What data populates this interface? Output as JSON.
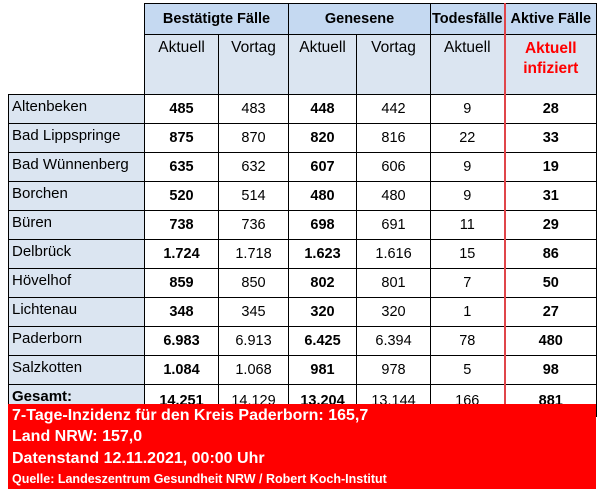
{
  "header": {
    "group_confirmed": "Bestätigte Fälle",
    "group_recovered": "Genesene",
    "group_deaths": "Todesfälle",
    "group_active": "Aktive Fälle",
    "sub_current_1": "Aktuell",
    "sub_previous_1": "Vortag",
    "sub_current_2": "Aktuell",
    "sub_previous_2": "Vortag",
    "sub_current_3": "Aktuell",
    "sub_active_line1": "Aktuell",
    "sub_active_line2": "infiziert"
  },
  "rows": [
    {
      "name": "Altenbeken",
      "conf_cur": "485",
      "conf_prev": "483",
      "rec_cur": "448",
      "rec_prev": "442",
      "deaths": "9",
      "active": "28"
    },
    {
      "name": "Bad Lippspringe",
      "conf_cur": "875",
      "conf_prev": "870",
      "rec_cur": "820",
      "rec_prev": "816",
      "deaths": "22",
      "active": "33"
    },
    {
      "name": "Bad Wünnenberg",
      "conf_cur": "635",
      "conf_prev": "632",
      "rec_cur": "607",
      "rec_prev": "606",
      "deaths": "9",
      "active": "19"
    },
    {
      "name": "Borchen",
      "conf_cur": "520",
      "conf_prev": "514",
      "rec_cur": "480",
      "rec_prev": "480",
      "deaths": "9",
      "active": "31"
    },
    {
      "name": "Büren",
      "conf_cur": "738",
      "conf_prev": "736",
      "rec_cur": "698",
      "rec_prev": "691",
      "deaths": "11",
      "active": "29"
    },
    {
      "name": "Delbrück",
      "conf_cur": "1.724",
      "conf_prev": "1.718",
      "rec_cur": "1.623",
      "rec_prev": "1.616",
      "deaths": "15",
      "active": "86"
    },
    {
      "name": "Hövelhof",
      "conf_cur": "859",
      "conf_prev": "850",
      "rec_cur": "802",
      "rec_prev": "801",
      "deaths": "7",
      "active": "50"
    },
    {
      "name": "Lichtenau",
      "conf_cur": "348",
      "conf_prev": "345",
      "rec_cur": "320",
      "rec_prev": "320",
      "deaths": "1",
      "active": "27"
    },
    {
      "name": "Paderborn",
      "conf_cur": "6.983",
      "conf_prev": "6.913",
      "rec_cur": "6.425",
      "rec_prev": "6.394",
      "deaths": "78",
      "active": "480"
    },
    {
      "name": "Salzkotten",
      "conf_cur": "1.084",
      "conf_prev": "1.068",
      "rec_cur": "981",
      "rec_prev": "978",
      "deaths": "5",
      "active": "98"
    }
  ],
  "total": {
    "name": "Gesamt:",
    "conf_cur": "14.251",
    "conf_prev": "14.129",
    "rec_cur": "13.204",
    "rec_prev": "13.144",
    "deaths": "166",
    "active": "881"
  },
  "footer": {
    "incidence": "7-Tage-Inzidenz für den Kreis Paderborn: 165,7",
    "state": "Land NRW: 157,0",
    "as_of": "Datenstand 12.11.2021, 00:00 Uhr",
    "source": "Quelle: Landeszentrum Gesundheit NRW / Robert Koch-Institut"
  },
  "colors": {
    "header_blue": "#c5d9f1",
    "light_blue": "#dbe5f1",
    "red": "#ff0000"
  }
}
